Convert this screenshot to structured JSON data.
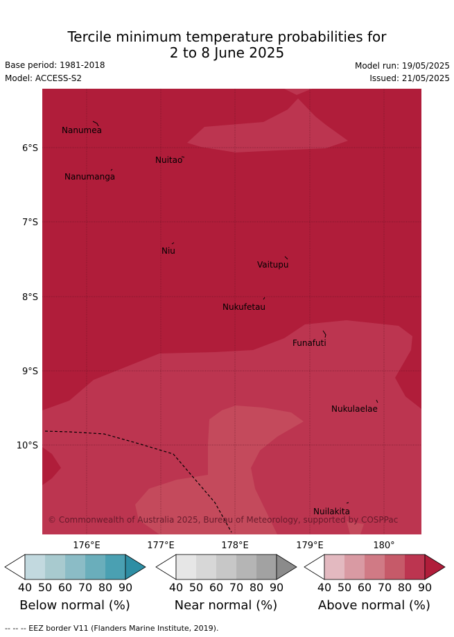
{
  "header": {
    "title_line1": "Tercile minimum temperature probabilities for",
    "title_line2": "2 to 8 June 2025",
    "base_period": "Base period: 1981-2018",
    "model": "Model: ACCESS-S2",
    "model_run": "Model run: 19/05/2025",
    "issued": "Issued: 21/05/2025"
  },
  "map": {
    "lat_labels": [
      "6°S",
      "7°S",
      "8°S",
      "9°S",
      "10°S"
    ],
    "lon_labels": [
      "176°E",
      "177°E",
      "178°E",
      "179°E",
      "180°"
    ],
    "places": [
      {
        "name": "Nanumea"
      },
      {
        "name": "Nuitao"
      },
      {
        "name": "Nanumanga"
      },
      {
        "name": "Niu"
      },
      {
        "name": "Vaitupu"
      },
      {
        "name": "Nukufetau"
      },
      {
        "name": "Funafuti"
      },
      {
        "name": "Nukulaelae"
      },
      {
        "name": "Nuilakita"
      }
    ],
    "copyright": "© Commonwealth of Australia 2025, Bureau of Meteorology, supported by COSPPac",
    "colors": {
      "above_90": "#b01d3a",
      "above_80": "#bc3550",
      "above_70": "#c44a5c"
    }
  },
  "legends": [
    {
      "label": "Below normal (%)",
      "ticks": [
        "40",
        "50",
        "60",
        "70",
        "80",
        "90"
      ],
      "colors": [
        "#ffffff",
        "#c2d9df",
        "#a8cacf",
        "#8bbcc6",
        "#6aaebb",
        "#4aa0b2",
        "#2e8ea4"
      ]
    },
    {
      "label": "Near normal (%)",
      "ticks": [
        "40",
        "50",
        "60",
        "70",
        "80",
        "90"
      ],
      "colors": [
        "#ffffff",
        "#e6e6e6",
        "#d7d7d7",
        "#c7c7c7",
        "#b5b5b5",
        "#a2a2a2",
        "#8b8b8b"
      ]
    },
    {
      "label": "Above normal (%)",
      "ticks": [
        "40",
        "50",
        "60",
        "70",
        "80",
        "90"
      ],
      "colors": [
        "#ffffff",
        "#e3b9c0",
        "#d99aa3",
        "#d07a85",
        "#c65a69",
        "#bc3550",
        "#b01d3a"
      ]
    }
  ],
  "footer": "--  --  -- EEZ border V11 (Flanders Marine Institute, 2019)."
}
